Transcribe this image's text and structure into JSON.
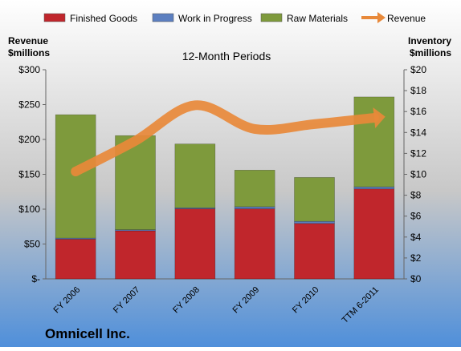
{
  "colors": {
    "finished_goods": "#C0262C",
    "work_in_progress": "#5C7FC0",
    "raw_materials": "#7E9A3C",
    "revenue": "#E8893A",
    "background_top": "#FFFFFF",
    "background_mid": "#C8C8C8",
    "background_bottom": "#4F8FDA"
  },
  "legend": [
    {
      "key": "finished_goods",
      "label": "Finished Goods",
      "kind": "bar"
    },
    {
      "key": "work_in_progress",
      "label": "Work in Progress",
      "kind": "bar"
    },
    {
      "key": "raw_materials",
      "label": "Raw Materials",
      "kind": "bar"
    },
    {
      "key": "revenue",
      "label": "Revenue",
      "kind": "arrow"
    }
  ],
  "chart_data": {
    "type": "bar",
    "stacked": true,
    "title": "12-Month Periods",
    "company": "Omnicell Inc.",
    "categories": [
      "FY 2006",
      "FY 2007",
      "FY 2008",
      "FY 2009",
      "FY 2010",
      "TTM 6-2011"
    ],
    "left_axis": {
      "label_line1": "Revenue",
      "label_line2": "$millions",
      "range": [
        0,
        300
      ],
      "ticks": [
        0,
        50,
        100,
        150,
        200,
        250,
        300
      ],
      "tick_labels": [
        "$-",
        "$50",
        "$100",
        "$150",
        "$200",
        "$250",
        "$300"
      ]
    },
    "right_axis": {
      "label_line1": "Inventory",
      "label_line2": "$millions",
      "range": [
        0,
        20
      ],
      "ticks": [
        0,
        2,
        4,
        6,
        8,
        10,
        12,
        14,
        16,
        18,
        20
      ],
      "tick_labels": [
        "$0",
        "$2",
        "$4",
        "$6",
        "$8",
        "$10",
        "$12",
        "$14",
        "$16",
        "$18",
        "$20"
      ]
    },
    "series": [
      {
        "name": "Finished Goods",
        "key": "finished_goods",
        "axis": "right",
        "values": [
          3.8,
          4.6,
          6.7,
          6.7,
          5.3,
          8.6
        ]
      },
      {
        "name": "Work in Progress",
        "key": "work_in_progress",
        "axis": "right",
        "values": [
          0.1,
          0.1,
          0.1,
          0.2,
          0.2,
          0.2
        ]
      },
      {
        "name": "Raw Materials",
        "key": "raw_materials",
        "axis": "right",
        "values": [
          11.8,
          9.0,
          6.1,
          3.5,
          4.2,
          8.6
        ]
      },
      {
        "name": "Revenue",
        "key": "revenue",
        "axis": "left",
        "type": "line",
        "values": [
          154,
          198,
          249,
          215,
          222,
          231
        ]
      }
    ],
    "grid": false,
    "legend_position": "top"
  }
}
